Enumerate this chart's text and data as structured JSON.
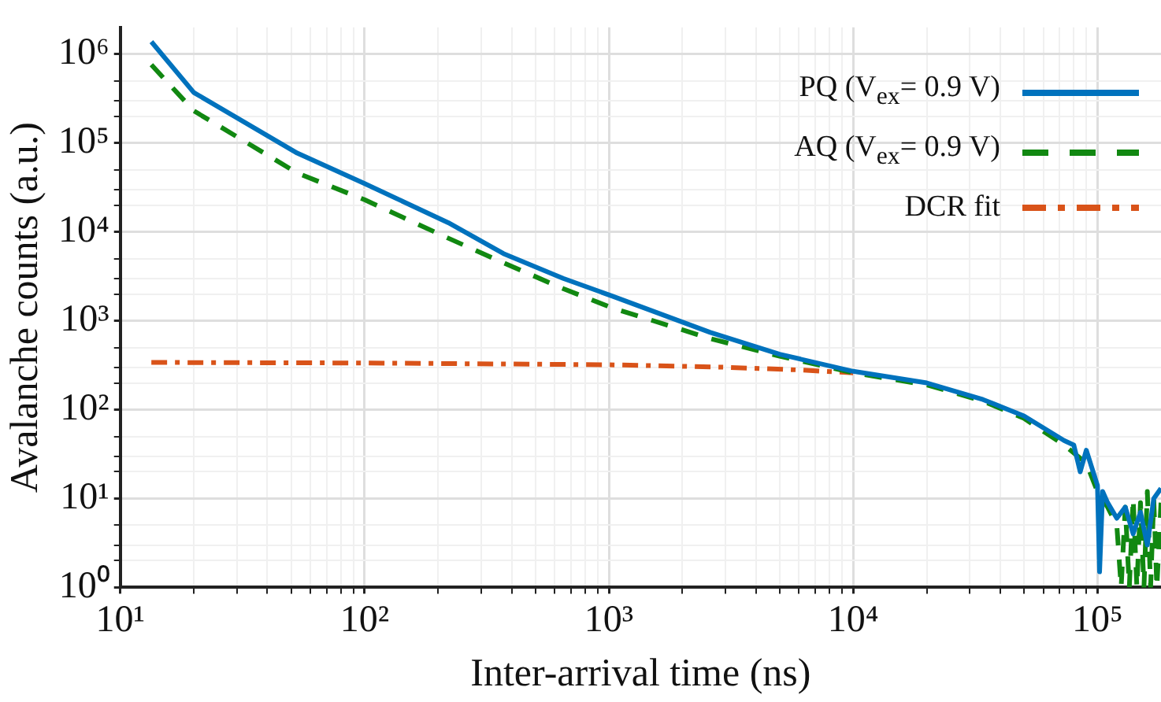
{
  "chart_data": {
    "type": "line",
    "xlabel": "Inter-arrival time (ns)",
    "ylabel": "Avalanche counts (a.u.)",
    "log": "xy",
    "grid": true,
    "legend": "top right",
    "marker": "none",
    "xlim": [
      10,
      182000
    ],
    "ylim": [
      1,
      2000000
    ],
    "xticks": [
      {
        "value": 10,
        "label": "10¹"
      },
      {
        "value": 20,
        "label": null
      },
      {
        "value": 30,
        "label": null
      },
      {
        "value": 40,
        "label": null
      },
      {
        "value": 50,
        "label": null
      },
      {
        "value": 60,
        "label": null
      },
      {
        "value": 70,
        "label": null
      },
      {
        "value": 80,
        "label": null
      },
      {
        "value": 90,
        "label": null
      },
      {
        "value": 100,
        "label": "10²"
      },
      {
        "value": 200,
        "label": null
      },
      {
        "value": 300,
        "label": null
      },
      {
        "value": 400,
        "label": null
      },
      {
        "value": 500,
        "label": null
      },
      {
        "value": 600,
        "label": null
      },
      {
        "value": 700,
        "label": null
      },
      {
        "value": 800,
        "label": null
      },
      {
        "value": 900,
        "label": null
      },
      {
        "value": 1000,
        "label": "10³"
      },
      {
        "value": 2000,
        "label": null
      },
      {
        "value": 3000,
        "label": null
      },
      {
        "value": 4000,
        "label": null
      },
      {
        "value": 5000,
        "label": null
      },
      {
        "value": 6000,
        "label": null
      },
      {
        "value": 7000,
        "label": null
      },
      {
        "value": 8000,
        "label": null
      },
      {
        "value": 9000,
        "label": null
      },
      {
        "value": 10000,
        "label": "10⁴"
      },
      {
        "value": 20000,
        "label": null
      },
      {
        "value": 30000,
        "label": null
      },
      {
        "value": 40000,
        "label": null
      },
      {
        "value": 50000,
        "label": null
      },
      {
        "value": 60000,
        "label": null
      },
      {
        "value": 70000,
        "label": null
      },
      {
        "value": 80000,
        "label": null
      },
      {
        "value": 90000,
        "label": null
      },
      {
        "value": 100000,
        "label": "10⁵"
      }
    ],
    "yticks": [
      {
        "value": 1,
        "label": "10⁰"
      },
      {
        "value": 2,
        "label": null
      },
      {
        "value": 3,
        "label": null
      },
      {
        "value": 5,
        "label": null
      },
      {
        "value": 10,
        "label": "10¹"
      },
      {
        "value": 20,
        "label": null
      },
      {
        "value": 30,
        "label": null
      },
      {
        "value": 50,
        "label": null
      },
      {
        "value": 100,
        "label": "10²"
      },
      {
        "value": 200,
        "label": null
      },
      {
        "value": 300,
        "label": null
      },
      {
        "value": 500,
        "label": null
      },
      {
        "value": 1000,
        "label": "10³"
      },
      {
        "value": 2000,
        "label": null
      },
      {
        "value": 3000,
        "label": null
      },
      {
        "value": 5000,
        "label": null
      },
      {
        "value": 10000,
        "label": "10⁴"
      },
      {
        "value": 20000,
        "label": null
      },
      {
        "value": 30000,
        "label": null
      },
      {
        "value": 50000,
        "label": null
      },
      {
        "value": 100000,
        "label": "10⁵"
      },
      {
        "value": 200000,
        "label": null
      },
      {
        "value": 300000,
        "label": null
      },
      {
        "value": 500000,
        "label": null
      },
      {
        "value": 1000000,
        "label": "10⁶"
      }
    ],
    "series": [
      {
        "name": "PQ (V$_{ex}$= 0.9 V)",
        "color": "#0072bd",
        "line_style": "solid",
        "x": [
          13.4,
          20,
          53,
          100,
          220,
          370,
          650,
          1030,
          2600,
          5000,
          10000,
          20000,
          34000,
          50000,
          73000,
          80000,
          85000,
          90000,
          100000,
          102000,
          105000,
          110000,
          120000,
          130000,
          140000,
          150000,
          160000,
          170000,
          182000
        ],
        "values": [
          1380000,
          370000,
          77000,
          35000,
          12700,
          5700,
          3000,
          1900,
          740,
          420,
          270,
          200,
          130,
          85,
          45,
          40,
          20,
          35,
          14,
          1.5,
          12,
          9,
          6,
          8,
          4,
          7,
          3,
          10,
          13
        ]
      },
      {
        "name": "AQ (V$_{ex}$= 0.9 V)",
        "color": "#118811",
        "line_style": "dashed",
        "x": [
          13.4,
          20,
          53,
          100,
          220,
          370,
          650,
          1030,
          2600,
          5000,
          10000,
          20000,
          34000,
          50000,
          73000,
          90000,
          100000,
          110000,
          120000,
          125000,
          130000,
          135000,
          140000,
          145000,
          150000,
          155000,
          160000,
          165000,
          170000,
          175000,
          182000
        ],
        "values": [
          760000,
          230000,
          46000,
          23000,
          8500,
          4500,
          2300,
          1400,
          630,
          400,
          260,
          190,
          125,
          80,
          40,
          25,
          12,
          8,
          5,
          1,
          8,
          1,
          10,
          1,
          9,
          1,
          12,
          1,
          10,
          1,
          9
        ]
      },
      {
        "name": "DCR fit",
        "color": "#d95319",
        "line_style": "dashdot",
        "x": [
          13.4,
          100,
          1000,
          3000,
          6000,
          10000
        ],
        "values": [
          340,
          335,
          320,
          300,
          280,
          260
        ]
      }
    ]
  }
}
